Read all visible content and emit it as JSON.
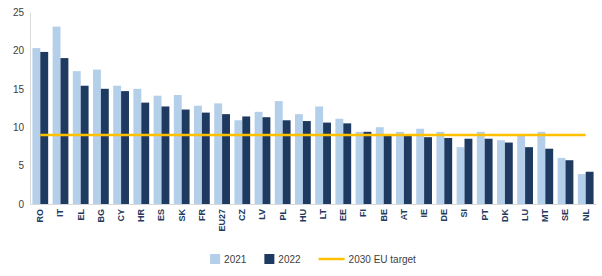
{
  "chart_data": {
    "type": "bar",
    "categories": [
      "RO",
      "IT",
      "EL",
      "BG",
      "CY",
      "HR",
      "ES",
      "SK",
      "FR",
      "EU27",
      "CZ",
      "LV",
      "PL",
      "HU",
      "LT",
      "EE",
      "FI",
      "BE",
      "AT",
      "IE",
      "DE",
      "SI",
      "PT",
      "DK",
      "LU",
      "MT",
      "SE",
      "NL"
    ],
    "series": [
      {
        "name": "2021",
        "color": "#b4cfe9",
        "type": "bar",
        "values": [
          20.3,
          23.1,
          17.3,
          17.5,
          15.4,
          15.0,
          14.1,
          14.2,
          12.8,
          13.1,
          10.9,
          12.0,
          13.4,
          11.7,
          12.7,
          11.1,
          9.4,
          10.0,
          9.4,
          9.8,
          9.4,
          7.4,
          9.4,
          8.3,
          8.9,
          9.4,
          6.0,
          3.9
        ]
      },
      {
        "name": "2022",
        "color": "#1f3a60",
        "type": "bar",
        "values": [
          19.8,
          19.0,
          15.4,
          15.0,
          14.7,
          13.2,
          12.7,
          12.3,
          11.9,
          11.7,
          11.4,
          11.3,
          10.9,
          10.8,
          10.6,
          10.5,
          9.4,
          8.9,
          8.9,
          8.7,
          8.6,
          8.5,
          8.5,
          8.0,
          7.4,
          7.2,
          5.7,
          4.2
        ]
      },
      {
        "name": "2030 EU target",
        "color": "#ffc000",
        "type": "line",
        "values": [
          9,
          9,
          9,
          9,
          9,
          9,
          9,
          9,
          9,
          9,
          9,
          9,
          9,
          9,
          9,
          9,
          9,
          9,
          9,
          9,
          9,
          9,
          9,
          9,
          9,
          9,
          9,
          9
        ]
      }
    ],
    "ylim": [
      0,
      25
    ],
    "yticks": [
      0,
      5,
      10,
      15,
      20,
      25
    ],
    "grid": false,
    "legend": "bottom"
  }
}
